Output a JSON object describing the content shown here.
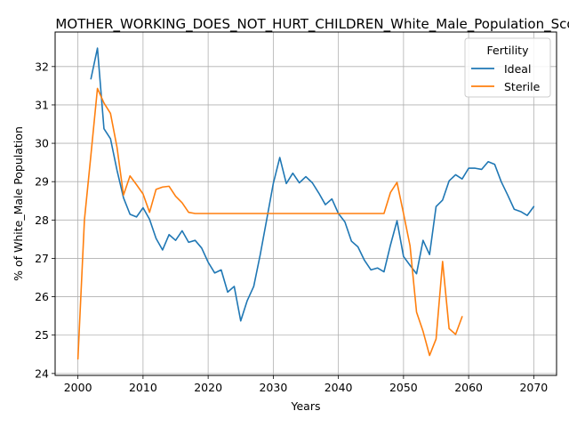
{
  "chart_data": {
    "type": "line",
    "title": "MOTHER_WORKING_DOES_NOT_HURT_CHILDREN_White_Male_Population_Score",
    "xlabel": "Years",
    "ylabel": "% of White_Male Population",
    "xlim": [
      1996.5,
      2073.5
    ],
    "ylim": [
      23.95,
      32.9
    ],
    "xticks": [
      2000,
      2010,
      2020,
      2030,
      2040,
      2050,
      2060,
      2070
    ],
    "yticks": [
      24,
      25,
      26,
      27,
      28,
      29,
      30,
      31,
      32
    ],
    "grid": true,
    "legend": {
      "title": "Fertility",
      "position": "top-right"
    },
    "series": [
      {
        "name": "Ideal",
        "color": "#1f77b4",
        "points": [
          [
            2002,
            31.68
          ],
          [
            2003,
            32.48
          ],
          [
            2004,
            30.38
          ],
          [
            2005,
            30.12
          ],
          [
            2006,
            29.3
          ],
          [
            2007,
            28.58
          ],
          [
            2008,
            28.15
          ],
          [
            2009,
            28.08
          ],
          [
            2010,
            28.32
          ],
          [
            2011,
            28.02
          ],
          [
            2012,
            27.52
          ],
          [
            2013,
            27.22
          ],
          [
            2014,
            27.62
          ],
          [
            2015,
            27.47
          ],
          [
            2016,
            27.72
          ],
          [
            2017,
            27.42
          ],
          [
            2018,
            27.47
          ],
          [
            2019,
            27.27
          ],
          [
            2020,
            26.9
          ],
          [
            2021,
            26.62
          ],
          [
            2022,
            26.7
          ],
          [
            2023,
            26.12
          ],
          [
            2024,
            26.27
          ],
          [
            2025,
            25.37
          ],
          [
            2026,
            25.9
          ],
          [
            2027,
            26.27
          ],
          [
            2028,
            27.1
          ],
          [
            2029,
            28.02
          ],
          [
            2030,
            28.95
          ],
          [
            2031,
            29.63
          ],
          [
            2032,
            28.95
          ],
          [
            2033,
            29.22
          ],
          [
            2034,
            28.97
          ],
          [
            2035,
            29.13
          ],
          [
            2036,
            28.97
          ],
          [
            2037,
            28.7
          ],
          [
            2038,
            28.4
          ],
          [
            2039,
            28.55
          ],
          [
            2040,
            28.17
          ],
          [
            2041,
            27.95
          ],
          [
            2042,
            27.45
          ],
          [
            2043,
            27.3
          ],
          [
            2044,
            26.95
          ],
          [
            2045,
            26.7
          ],
          [
            2046,
            26.75
          ],
          [
            2047,
            26.65
          ],
          [
            2048,
            27.35
          ],
          [
            2049,
            27.98
          ],
          [
            2050,
            27.05
          ],
          [
            2051,
            26.82
          ],
          [
            2052,
            26.6
          ],
          [
            2053,
            27.47
          ],
          [
            2054,
            27.1
          ],
          [
            2055,
            28.35
          ],
          [
            2056,
            28.52
          ],
          [
            2057,
            29.02
          ],
          [
            2058,
            29.18
          ],
          [
            2059,
            29.07
          ],
          [
            2060,
            29.35
          ],
          [
            2061,
            29.35
          ],
          [
            2062,
            29.32
          ],
          [
            2063,
            29.52
          ],
          [
            2064,
            29.45
          ],
          [
            2065,
            29.0
          ],
          [
            2066,
            28.65
          ],
          [
            2067,
            28.28
          ],
          [
            2068,
            28.22
          ],
          [
            2069,
            28.12
          ],
          [
            2070,
            28.35
          ]
        ]
      },
      {
        "name": "Sterile",
        "color": "#ff7f0e",
        "points": [
          [
            2000,
            24.38
          ],
          [
            2001,
            28.0
          ],
          [
            2002,
            29.7
          ],
          [
            2003,
            31.43
          ],
          [
            2004,
            31.05
          ],
          [
            2005,
            30.78
          ],
          [
            2006,
            29.9
          ],
          [
            2007,
            28.65
          ],
          [
            2008,
            29.15
          ],
          [
            2009,
            28.92
          ],
          [
            2010,
            28.68
          ],
          [
            2011,
            28.2
          ],
          [
            2012,
            28.8
          ],
          [
            2013,
            28.86
          ],
          [
            2014,
            28.88
          ],
          [
            2015,
            28.62
          ],
          [
            2016,
            28.45
          ],
          [
            2017,
            28.2
          ],
          [
            2018,
            28.17
          ],
          [
            2019,
            28.17
          ],
          [
            2020,
            28.17
          ],
          [
            2030,
            28.17
          ],
          [
            2040,
            28.17
          ],
          [
            2047,
            28.17
          ],
          [
            2048,
            28.72
          ],
          [
            2049,
            28.98
          ],
          [
            2050,
            28.17
          ],
          [
            2051,
            27.33
          ],
          [
            2052,
            25.6
          ],
          [
            2053,
            25.1
          ],
          [
            2054,
            24.47
          ],
          [
            2055,
            24.9
          ],
          [
            2056,
            26.92
          ],
          [
            2057,
            25.17
          ],
          [
            2058,
            25.02
          ],
          [
            2059,
            25.48
          ]
        ]
      }
    ]
  }
}
